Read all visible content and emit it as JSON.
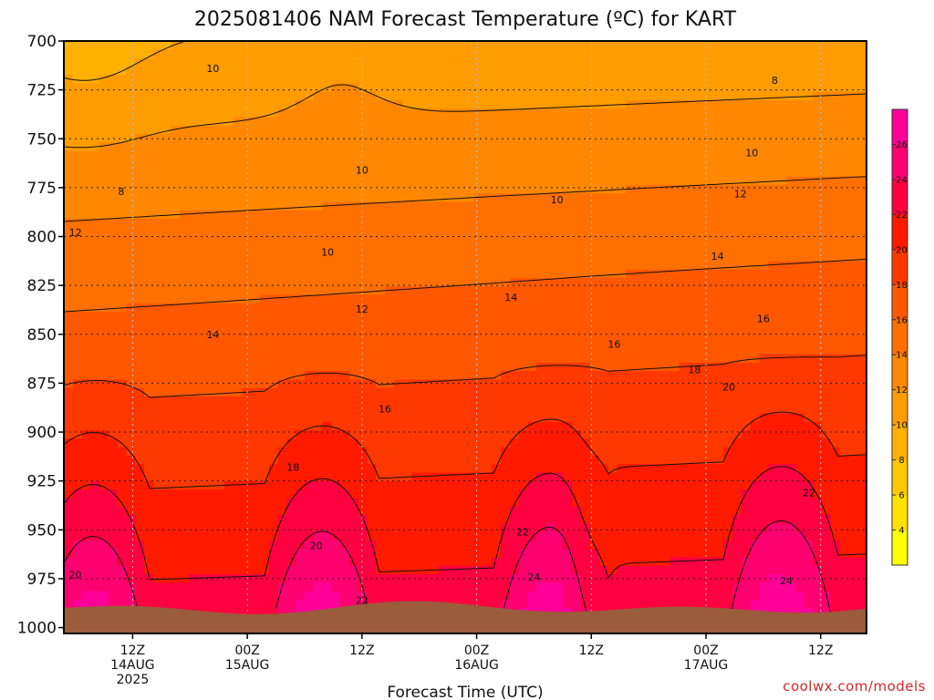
{
  "chart_data": {
    "type": "heatmap",
    "title": "2025081406 NAM Forecast Temperature (ºC) for KART",
    "xlabel": "Forecast Time (UTC)",
    "ylabel": "",
    "credit": "coolwx.com/models",
    "y_ticks": [
      "700",
      "725",
      "750",
      "775",
      "800",
      "825",
      "850",
      "875",
      "900",
      "925",
      "950",
      "975",
      "1000"
    ],
    "y_values": [
      700,
      725,
      750,
      775,
      800,
      825,
      850,
      875,
      900,
      925,
      950,
      975,
      1000
    ],
    "y_range": [
      700,
      1003
    ],
    "y_inverted": true,
    "x_range_hours": [
      6,
      76
    ],
    "x_ticks": [
      {
        "hour": 12,
        "lines": [
          "12Z",
          "14AUG",
          "2025"
        ]
      },
      {
        "hour": 22,
        "lines": [
          "00Z",
          "15AUG"
        ]
      },
      {
        "hour": 32,
        "lines": [
          "12Z"
        ]
      },
      {
        "hour": 42,
        "lines": [
          "00Z",
          "16AUG"
        ]
      },
      {
        "hour": 52,
        "lines": [
          "12Z"
        ]
      },
      {
        "hour": 62,
        "lines": [
          "00Z",
          "17AUG"
        ]
      },
      {
        "hour": 72,
        "lines": [
          "12Z"
        ]
      }
    ],
    "grid": true,
    "colorbar": {
      "levels": [
        2,
        4,
        6,
        8,
        10,
        12,
        14,
        16,
        18,
        20,
        22,
        24,
        26,
        28
      ],
      "tick_labels": [
        "4",
        "6",
        "8",
        "10",
        "12",
        "14",
        "16",
        "18",
        "20",
        "22",
        "24",
        "26"
      ],
      "colors": [
        "#ffff00",
        "#ffe000",
        "#ffc800",
        "#ffb000",
        "#ff9c00",
        "#ff8800",
        "#ff7000",
        "#ff5800",
        "#ff3800",
        "#ff1a00",
        "#ff0040",
        "#ff0070",
        "#ff0099"
      ]
    },
    "ground_color": "#9a5c3a",
    "contour_labels": [
      {
        "text": "10",
        "hour": 19,
        "p": 714
      },
      {
        "text": "8",
        "hour": 11,
        "p": 777
      },
      {
        "text": "12",
        "hour": 7,
        "p": 798
      },
      {
        "text": "10",
        "hour": 32,
        "p": 766
      },
      {
        "text": "10",
        "hour": 29,
        "p": 808
      },
      {
        "text": "10",
        "hour": 49,
        "p": 781
      },
      {
        "text": "8",
        "hour": 68,
        "p": 720
      },
      {
        "text": "10",
        "hour": 66,
        "p": 757
      },
      {
        "text": "12",
        "hour": 65,
        "p": 778
      },
      {
        "text": "14",
        "hour": 63,
        "p": 810
      },
      {
        "text": "12",
        "hour": 32,
        "p": 837
      },
      {
        "text": "14",
        "hour": 19,
        "p": 850
      },
      {
        "text": "14",
        "hour": 45,
        "p": 831
      },
      {
        "text": "16",
        "hour": 54,
        "p": 855
      },
      {
        "text": "16",
        "hour": 67,
        "p": 842
      },
      {
        "text": "18",
        "hour": 61,
        "p": 868
      },
      {
        "text": "16",
        "hour": 34,
        "p": 888
      },
      {
        "text": "20",
        "hour": 64,
        "p": 877
      },
      {
        "text": "18",
        "hour": 26,
        "p": 918
      },
      {
        "text": "22",
        "hour": 71,
        "p": 931
      },
      {
        "text": "22",
        "hour": 46,
        "p": 951
      },
      {
        "text": "20",
        "hour": 7,
        "p": 973
      },
      {
        "text": "20",
        "hour": 28,
        "p": 958
      },
      {
        "text": "24",
        "hour": 47,
        "p": 974
      },
      {
        "text": "24",
        "hour": 69,
        "p": 976
      },
      {
        "text": "22",
        "hour": 32,
        "p": 986
      }
    ]
  }
}
